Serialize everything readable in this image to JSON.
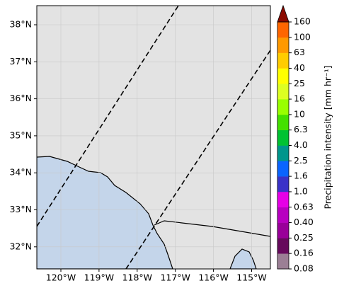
{
  "map": {
    "lon_ticks": [
      "120°W",
      "119°W",
      "118°W",
      "117°W",
      "116°W",
      "115°W"
    ],
    "lat_ticks": [
      "38°N",
      "37°N",
      "36°N",
      "35°N",
      "34°N",
      "33°N",
      "32°N"
    ],
    "colorbar": {
      "label": "Precipitation intensity [mm hr⁻¹]",
      "levels": [
        "0.08",
        "0.16",
        "0.25",
        "0.40",
        "0.63",
        "1.0",
        "1.6",
        "2.5",
        "4.0",
        "6.3",
        "10",
        "16",
        "25",
        "40",
        "63",
        "100",
        "160"
      ],
      "colors": [
        "#9b7f95",
        "#660a5c",
        "#990099",
        "#b800c0",
        "#e600e6",
        "#3a32c8",
        "#0a64ff",
        "#00968c",
        "#00c232",
        "#44e000",
        "#99ff00",
        "#ddff22",
        "#ffff00",
        "#ffcc00",
        "#ff9900",
        "#ff6600",
        "#e81c00"
      ],
      "extend_color": "#8b0a00"
    }
  }
}
